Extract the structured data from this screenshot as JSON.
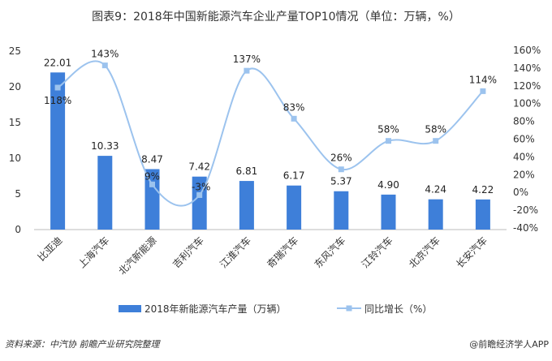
{
  "title": "图表9：2018年中国新能源汽车企业产量TOP10情况（单位：万辆，%）",
  "source": "资料来源：中汽协 前瞻产业研究院整理",
  "brand": "@前瞻经济学人APP",
  "chart_data": {
    "type": "bar+line",
    "categories": [
      "比亚迪",
      "上海汽车",
      "北汽新能源",
      "吉利汽车",
      "江淮汽车",
      "奇瑞汽车",
      "东风汽车",
      "江铃汽车",
      "北京汽车",
      "长安汽车"
    ],
    "series": [
      {
        "name": "2018年新能源汽车产量（万辆）",
        "type": "bar",
        "axis": "left",
        "color": "#3e7fd9",
        "values": [
          22.01,
          10.33,
          8.47,
          7.42,
          6.81,
          6.17,
          5.37,
          4.9,
          4.24,
          4.22
        ],
        "labels": [
          "22.01",
          "10.33",
          "8.47",
          "7.42",
          "6.81",
          "6.17",
          "5.37",
          "4.90",
          "4.24",
          "4.22"
        ]
      },
      {
        "name": "同比增长（%）",
        "type": "line",
        "axis": "right",
        "color": "#9cc3ee",
        "values": [
          118,
          143,
          9,
          -3,
          137,
          83,
          26,
          58,
          58,
          114
        ],
        "labels": [
          "118%",
          "143%",
          "9%",
          "-3%",
          "137%",
          "83%",
          "26%",
          "58%",
          "58%",
          "114%"
        ]
      }
    ],
    "y_left": {
      "range": [
        0,
        25
      ],
      "ticks": [
        "0",
        "5",
        "10",
        "15",
        "20",
        "25"
      ]
    },
    "y_right": {
      "range": [
        -40,
        160
      ],
      "ticks": [
        "-40%",
        "-20%",
        "0%",
        "20%",
        "40%",
        "60%",
        "80%",
        "100%",
        "120%",
        "140%",
        "160%"
      ]
    },
    "grid": false,
    "legend": "bottom"
  }
}
